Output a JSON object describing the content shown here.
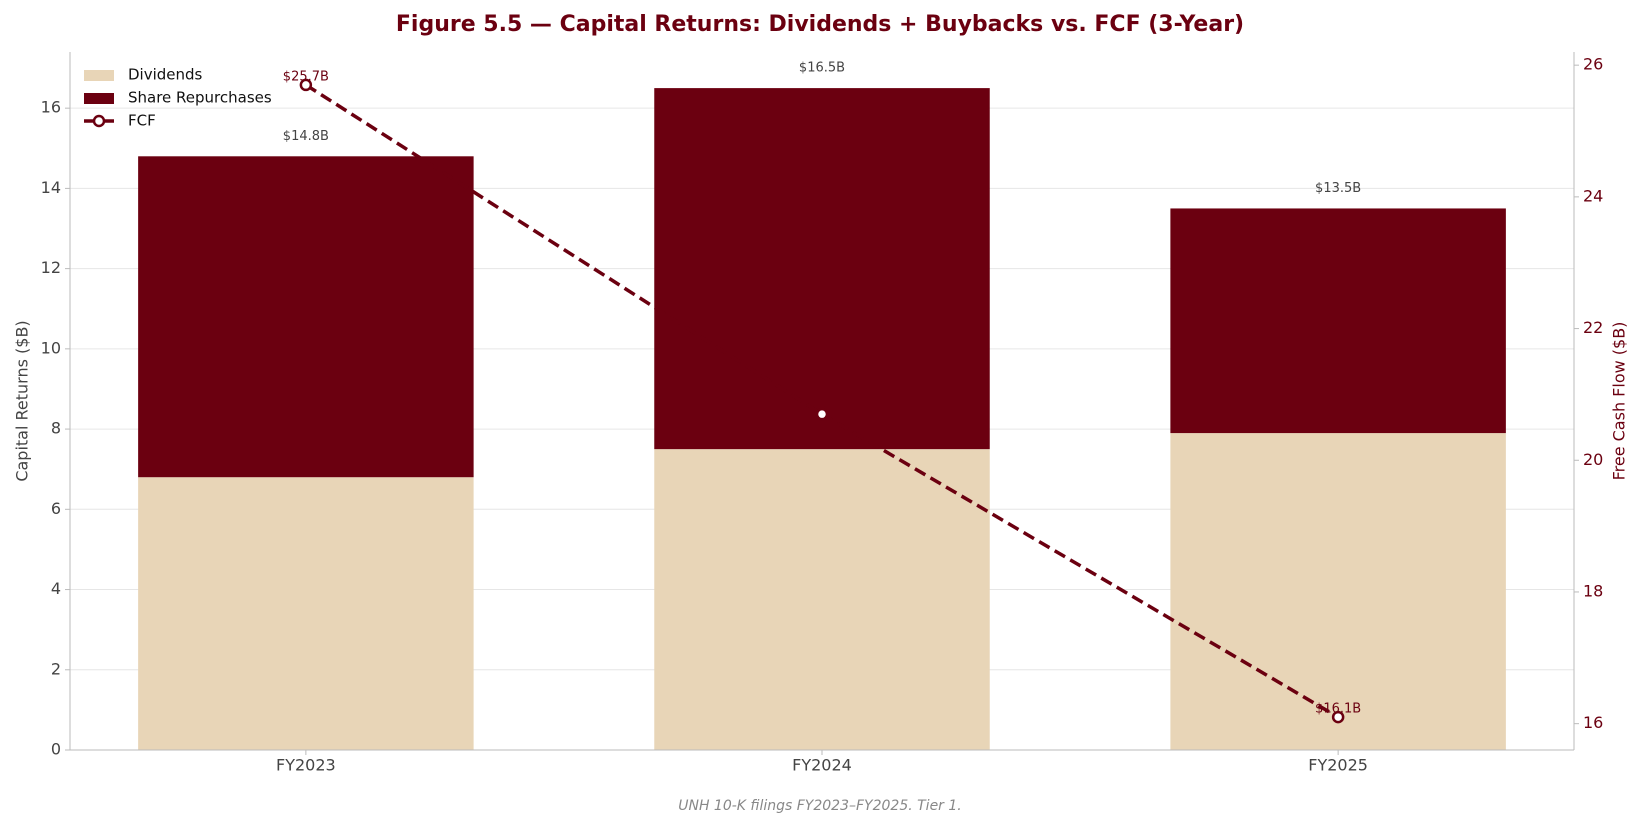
{
  "chart_data": {
    "type": "stacked_bar_line",
    "title": "Figure 5.5 — Capital Returns: Dividends + Buybacks vs. FCF (3-Year)",
    "footnote": "UNH 10-K filings FY2023–FY2025. Tier 1.",
    "y_label": "Capital Returns ($B)",
    "y2_label": "Free Cash Flow ($B)",
    "categories": [
      "FY2023",
      "FY2024",
      "FY2025"
    ],
    "series": [
      {
        "name": "Dividends",
        "color": "#e8d5b7",
        "kind": "bar",
        "values": [
          6.8,
          7.5,
          7.9
        ]
      },
      {
        "name": "Share Repurchases",
        "color": "#6b0010",
        "kind": "bar",
        "values": [
          8.0,
          9.0,
          5.6
        ]
      },
      {
        "name": "FCF",
        "color": "#6b0010",
        "kind": "line",
        "axis": "y2",
        "values": [
          25.7,
          20.7,
          16.1
        ],
        "value_labels": [
          "$25.7B",
          null,
          "$16.1B"
        ]
      }
    ],
    "totals": {
      "values": [
        14.8,
        16.5,
        13.5
      ],
      "value_labels": [
        "$14.8B",
        "$16.5B",
        "$13.5B"
      ]
    },
    "ylim": [
      0,
      17.4
    ],
    "yticks": [
      0,
      2,
      4,
      6,
      8,
      10,
      12,
      14,
      16
    ],
    "y2lim": [
      15.6,
      26.2
    ],
    "y2ticks": [
      16,
      18,
      20,
      22,
      24,
      26
    ],
    "grid": true,
    "legend": "upper left"
  }
}
